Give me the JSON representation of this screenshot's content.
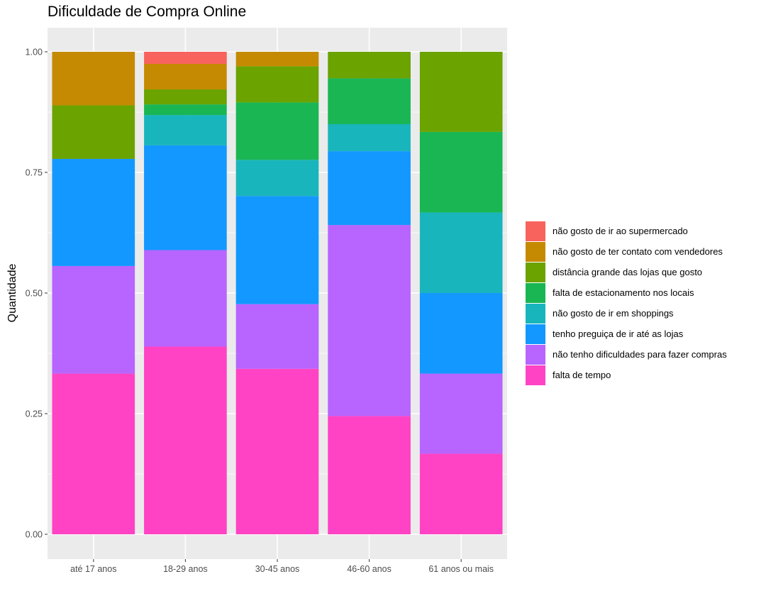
{
  "chart_data": {
    "type": "bar",
    "stacked": true,
    "title": "Dificuldade de Compra Online",
    "xlabel": "",
    "ylabel": "Quantidade",
    "ylim": [
      0,
      1
    ],
    "yticks": [
      "0.00",
      "0.25",
      "0.50",
      "0.75",
      "1.00"
    ],
    "grid": true,
    "legend_position": "right",
    "categories": [
      "até 17 anos",
      "18-29 anos",
      "30-45 anos",
      "46-60 anos",
      "61 anos ou mais"
    ],
    "series": [
      {
        "name": "falta de tempo",
        "color": "#FF43C4",
        "values": [
          0.333,
          0.389,
          0.343,
          0.245,
          0.167
        ]
      },
      {
        "name": "não tenho dificuldades para fazer compras",
        "color": "#B864FF",
        "values": [
          0.223,
          0.2,
          0.134,
          0.396,
          0.166
        ]
      },
      {
        "name": "tenho preguiça de ir até as lojas",
        "color": "#1398FF",
        "values": [
          0.222,
          0.217,
          0.224,
          0.153,
          0.167
        ]
      },
      {
        "name": "não gosto de ir em shoppings",
        "color": "#19B5BC",
        "values": [
          0.0,
          0.063,
          0.075,
          0.056,
          0.167
        ]
      },
      {
        "name": "falta de estacionamento nos locais",
        "color": "#1AB654",
        "values": [
          0.0,
          0.022,
          0.119,
          0.095,
          0.167
        ]
      },
      {
        "name": "distância grande das lojas que gosto",
        "color": "#6BA300",
        "values": [
          0.111,
          0.031,
          0.075,
          0.055,
          0.166
        ]
      },
      {
        "name": "não gosto de ter contato com vendedores",
        "color": "#C58A02",
        "values": [
          0.111,
          0.053,
          0.03,
          0.0,
          0.0
        ]
      },
      {
        "name": "não gosto de ir ao supermercado",
        "color": "#F8635E",
        "values": [
          0.0,
          0.025,
          0.0,
          0.0,
          0.0
        ]
      }
    ]
  }
}
